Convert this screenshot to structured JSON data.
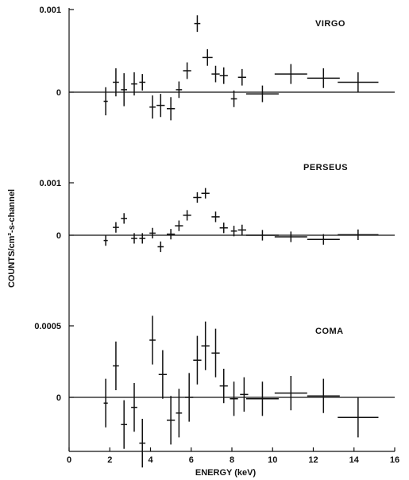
{
  "chart_data": {
    "type": "scatter",
    "x_axis": {
      "label": "ENERGY (keV)",
      "range": [
        0,
        16
      ],
      "ticks": [
        0,
        2,
        4,
        6,
        8,
        10,
        12,
        14,
        16
      ]
    },
    "y_axis_label": "COUNTS/cm²-s-channel",
    "panels": [
      {
        "label": "VIRGO",
        "y_ticks": [
          {
            "value": 0,
            "label": "0"
          },
          {
            "value": 0.001,
            "label": "0.001"
          }
        ],
        "points": [
          {
            "x": 1.8,
            "y": -0.00011,
            "xerr": 0.1,
            "yerr": 0.00017
          },
          {
            "x": 2.3,
            "y": 0.00012,
            "xerr": 0.15,
            "yerr": 0.00017
          },
          {
            "x": 2.7,
            "y": 3e-05,
            "xerr": 0.15,
            "yerr": 0.0002
          },
          {
            "x": 3.2,
            "y": 0.0001,
            "xerr": 0.15,
            "yerr": 0.00014
          },
          {
            "x": 3.6,
            "y": 0.00012,
            "xerr": 0.15,
            "yerr": 0.0001
          },
          {
            "x": 4.1,
            "y": -0.00018,
            "xerr": 0.15,
            "yerr": 0.00014
          },
          {
            "x": 4.5,
            "y": -0.00016,
            "xerr": 0.2,
            "yerr": 0.00014
          },
          {
            "x": 5.0,
            "y": -0.0002,
            "xerr": 0.2,
            "yerr": 0.00014
          },
          {
            "x": 5.4,
            "y": 3e-05,
            "xerr": 0.15,
            "yerr": 0.0001
          },
          {
            "x": 5.8,
            "y": 0.00026,
            "xerr": 0.2,
            "yerr": 0.0001
          },
          {
            "x": 6.3,
            "y": 0.00083,
            "xerr": 0.15,
            "yerr": 0.0001
          },
          {
            "x": 6.8,
            "y": 0.00042,
            "xerr": 0.25,
            "yerr": 0.0001
          },
          {
            "x": 7.2,
            "y": 0.00022,
            "xerr": 0.2,
            "yerr": 0.0001
          },
          {
            "x": 7.6,
            "y": 0.0002,
            "xerr": 0.2,
            "yerr": 0.0001
          },
          {
            "x": 8.1,
            "y": -8e-05,
            "xerr": 0.15,
            "yerr": 0.0001
          },
          {
            "x": 8.5,
            "y": 0.00018,
            "xerr": 0.2,
            "yerr": 0.0001
          },
          {
            "x": 9.5,
            "y": -2e-05,
            "xerr": 0.8,
            "yerr": 0.0001
          },
          {
            "x": 10.9,
            "y": 0.00022,
            "xerr": 0.8,
            "yerr": 0.00012
          },
          {
            "x": 12.5,
            "y": 0.00017,
            "xerr": 0.8,
            "yerr": 0.00012
          },
          {
            "x": 14.2,
            "y": 0.00012,
            "xerr": 1.0,
            "yerr": 0.00012
          }
        ]
      },
      {
        "label": "PERSEUS",
        "y_ticks": [
          {
            "value": 0,
            "label": "0"
          },
          {
            "value": 0.001,
            "label": "0.001"
          }
        ],
        "points": [
          {
            "x": 1.8,
            "y": -0.0001,
            "xerr": 0.1,
            "yerr": 0.0001
          },
          {
            "x": 2.3,
            "y": 0.00015,
            "xerr": 0.15,
            "yerr": 0.0001
          },
          {
            "x": 2.7,
            "y": 0.00032,
            "xerr": 0.15,
            "yerr": 0.0001
          },
          {
            "x": 3.2,
            "y": -6e-05,
            "xerr": 0.15,
            "yerr": 0.0001
          },
          {
            "x": 3.6,
            "y": -6e-05,
            "xerr": 0.15,
            "yerr": 0.0001
          },
          {
            "x": 4.1,
            "y": 4e-05,
            "xerr": 0.15,
            "yerr": 0.0001
          },
          {
            "x": 4.5,
            "y": -0.00022,
            "xerr": 0.15,
            "yerr": 0.0001
          },
          {
            "x": 5.0,
            "y": 2e-05,
            "xerr": 0.2,
            "yerr": 0.0001
          },
          {
            "x": 5.4,
            "y": 0.00018,
            "xerr": 0.2,
            "yerr": 0.0001
          },
          {
            "x": 5.8,
            "y": 0.00038,
            "xerr": 0.2,
            "yerr": 0.0001
          },
          {
            "x": 6.3,
            "y": 0.00072,
            "xerr": 0.2,
            "yerr": 0.0001
          },
          {
            "x": 6.7,
            "y": 0.0008,
            "xerr": 0.2,
            "yerr": 0.0001
          },
          {
            "x": 7.2,
            "y": 0.00035,
            "xerr": 0.2,
            "yerr": 0.0001
          },
          {
            "x": 7.6,
            "y": 0.00014,
            "xerr": 0.2,
            "yerr": 0.0001
          },
          {
            "x": 8.1,
            "y": 8e-05,
            "xerr": 0.15,
            "yerr": 0.0001
          },
          {
            "x": 8.5,
            "y": 0.0001,
            "xerr": 0.2,
            "yerr": 0.0001
          },
          {
            "x": 9.5,
            "y": 0.0,
            "xerr": 0.8,
            "yerr": 0.0001
          },
          {
            "x": 10.9,
            "y": -3e-05,
            "xerr": 0.8,
            "yerr": 0.0001
          },
          {
            "x": 12.5,
            "y": -8e-05,
            "xerr": 0.8,
            "yerr": 0.0001
          },
          {
            "x": 14.2,
            "y": 1e-05,
            "xerr": 1.0,
            "yerr": 0.0001
          }
        ]
      },
      {
        "label": "COMA",
        "y_ticks": [
          {
            "value": 0,
            "label": "0"
          },
          {
            "value": 0.0005,
            "label": "0.0005"
          }
        ],
        "points": [
          {
            "x": 1.8,
            "y": -4e-05,
            "xerr": 0.1,
            "yerr": 0.00017
          },
          {
            "x": 2.3,
            "y": 0.00022,
            "xerr": 0.15,
            "yerr": 0.00017
          },
          {
            "x": 2.7,
            "y": -0.00019,
            "xerr": 0.15,
            "yerr": 0.00017
          },
          {
            "x": 3.2,
            "y": -7e-05,
            "xerr": 0.15,
            "yerr": 0.00017
          },
          {
            "x": 3.6,
            "y": -0.00032,
            "xerr": 0.15,
            "yerr": 0.00017
          },
          {
            "x": 4.1,
            "y": 0.0004,
            "xerr": 0.15,
            "yerr": 0.00017
          },
          {
            "x": 4.6,
            "y": 0.00016,
            "xerr": 0.2,
            "yerr": 0.00017
          },
          {
            "x": 5.0,
            "y": -0.00016,
            "xerr": 0.2,
            "yerr": 0.00017
          },
          {
            "x": 5.4,
            "y": -0.00011,
            "xerr": 0.15,
            "yerr": 0.00017
          },
          {
            "x": 5.9,
            "y": 0.0,
            "xerr": 0.2,
            "yerr": 0.00017
          },
          {
            "x": 6.3,
            "y": 0.00026,
            "xerr": 0.2,
            "yerr": 0.00017
          },
          {
            "x": 6.7,
            "y": 0.00036,
            "xerr": 0.2,
            "yerr": 0.00017
          },
          {
            "x": 7.2,
            "y": 0.00031,
            "xerr": 0.2,
            "yerr": 0.00017
          },
          {
            "x": 7.6,
            "y": 8e-05,
            "xerr": 0.2,
            "yerr": 0.00012
          },
          {
            "x": 8.1,
            "y": -1e-05,
            "xerr": 0.2,
            "yerr": 0.00012
          },
          {
            "x": 8.6,
            "y": 2e-05,
            "xerr": 0.2,
            "yerr": 0.00012
          },
          {
            "x": 9.5,
            "y": -1e-05,
            "xerr": 0.8,
            "yerr": 0.00012
          },
          {
            "x": 10.9,
            "y": 3e-05,
            "xerr": 0.8,
            "yerr": 0.00012
          },
          {
            "x": 12.5,
            "y": 1e-05,
            "xerr": 0.8,
            "yerr": 0.00012
          },
          {
            "x": 14.2,
            "y": -0.00014,
            "xerr": 1.0,
            "yerr": 0.00014
          }
        ]
      }
    ]
  }
}
